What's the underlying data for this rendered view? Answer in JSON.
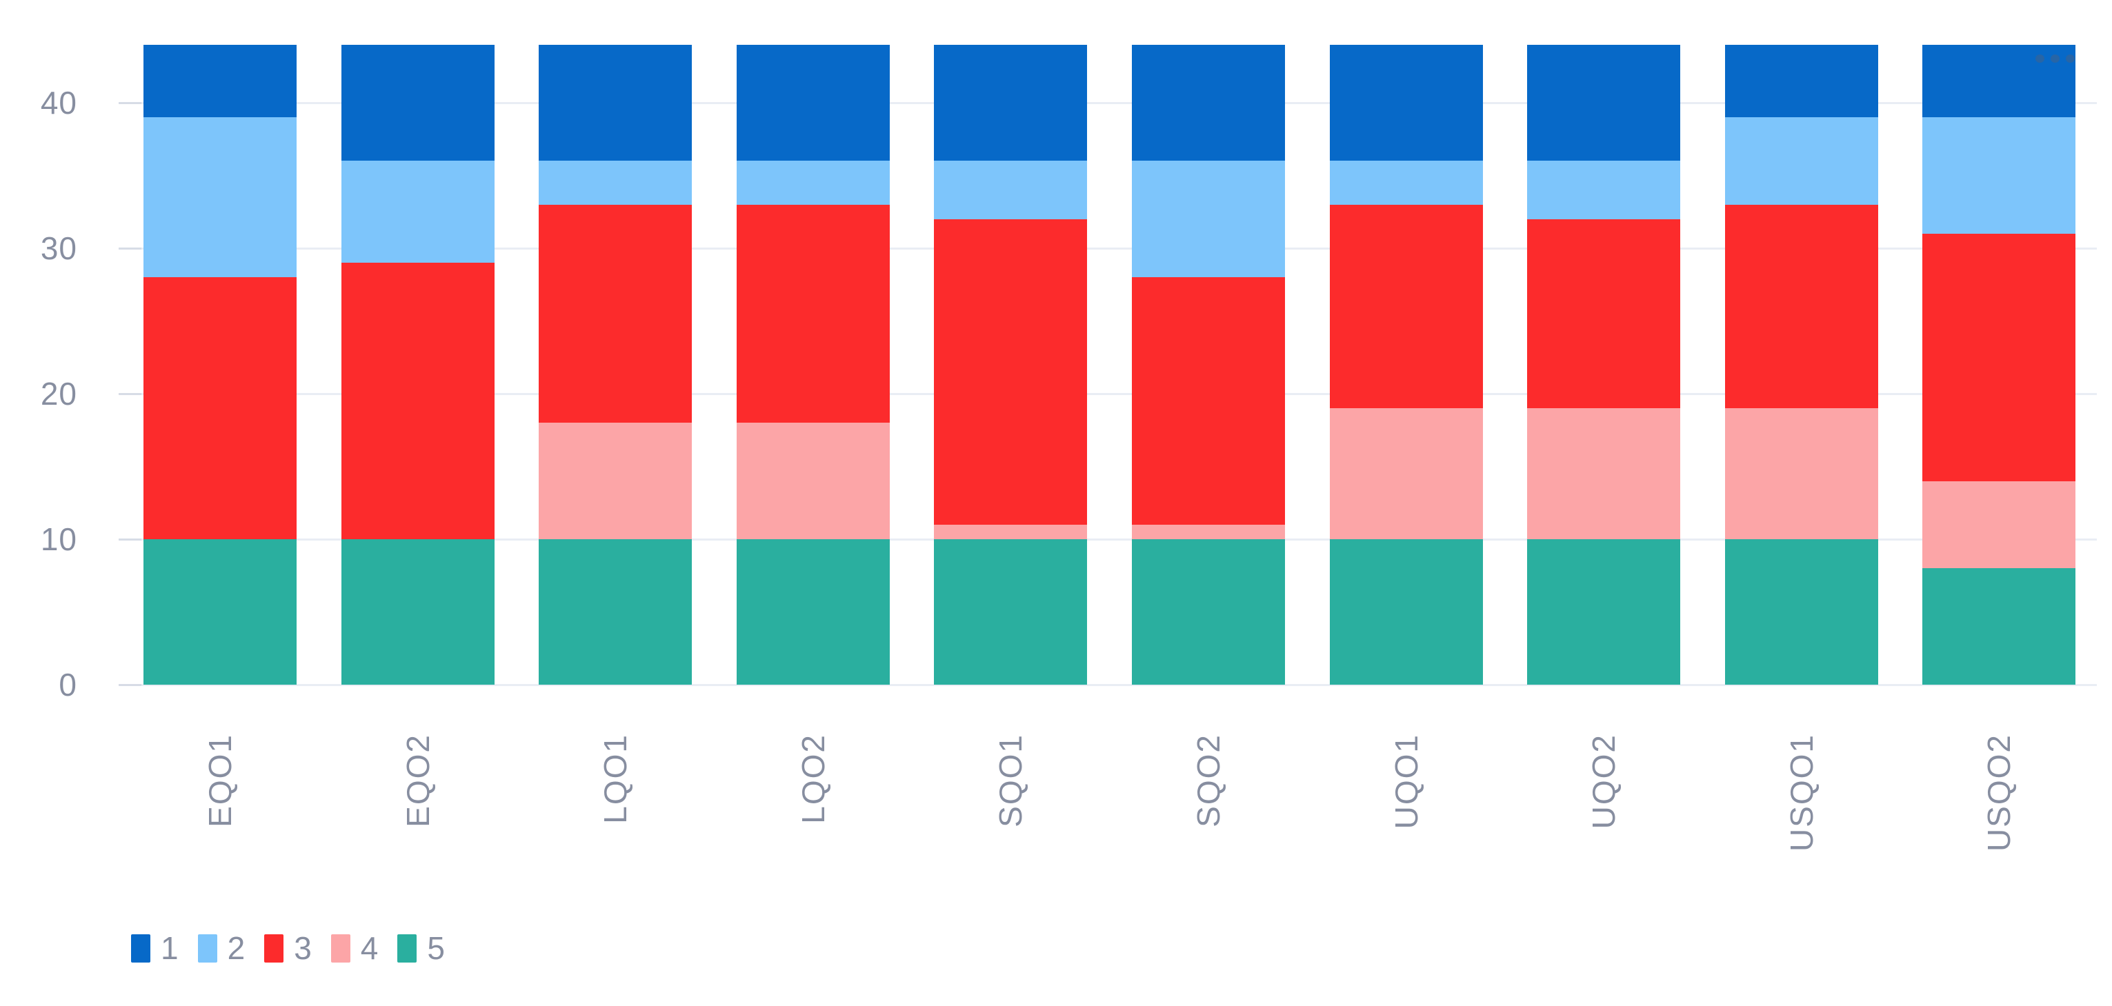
{
  "page": {
    "background": "#ffffff"
  },
  "styles": {
    "grid_color": "#E9EDF4",
    "tick_color": "#D7DCE6",
    "axis_label_color": "#878EA0",
    "legend_label_color": "#878EA0"
  },
  "icons": {
    "more_options": "ellipsis-icon"
  },
  "chart_data": {
    "type": "bar",
    "stacked": true,
    "orientation": "vertical",
    "title": "",
    "xlabel": "",
    "ylabel": "",
    "categories": [
      "EQO1",
      "EQO2",
      "LQO1",
      "LQO2",
      "SQO1",
      "SQO2",
      "UQO1",
      "UQO2",
      "USQO1",
      "USQO2"
    ],
    "series": [
      {
        "name": "1",
        "color": "#0769C8",
        "values": [
          5,
          8,
          8,
          8,
          8,
          8,
          8,
          8,
          5,
          5
        ]
      },
      {
        "name": "2",
        "color": "#7DC5FB",
        "values": [
          11,
          7,
          3,
          3,
          4,
          8,
          3,
          4,
          6,
          8
        ]
      },
      {
        "name": "3",
        "color": "#FC2B2C",
        "values": [
          18,
          19,
          15,
          15,
          21,
          17,
          14,
          13,
          14,
          17
        ]
      },
      {
        "name": "4",
        "color": "#FCA5A7",
        "values": [
          0,
          0,
          8,
          8,
          1,
          1,
          9,
          9,
          9,
          6
        ]
      },
      {
        "name": "5",
        "color": "#2AAF9F",
        "values": [
          10,
          10,
          10,
          10,
          10,
          10,
          10,
          10,
          10,
          8
        ]
      }
    ],
    "stack_order_bottom_to_top": [
      "5",
      "4",
      "3",
      "2",
      "1"
    ],
    "totals": [
      44,
      44,
      44,
      44,
      44,
      44,
      44,
      44,
      44,
      44
    ],
    "y_axis": {
      "ticks": [
        0,
        10,
        20,
        30,
        40
      ],
      "min": 0,
      "max": 44.2
    },
    "x_label_rotation": -90,
    "grid": true,
    "legend": {
      "position": "bottom-left",
      "labels": [
        "1",
        "2",
        "3",
        "4",
        "5"
      ]
    }
  }
}
